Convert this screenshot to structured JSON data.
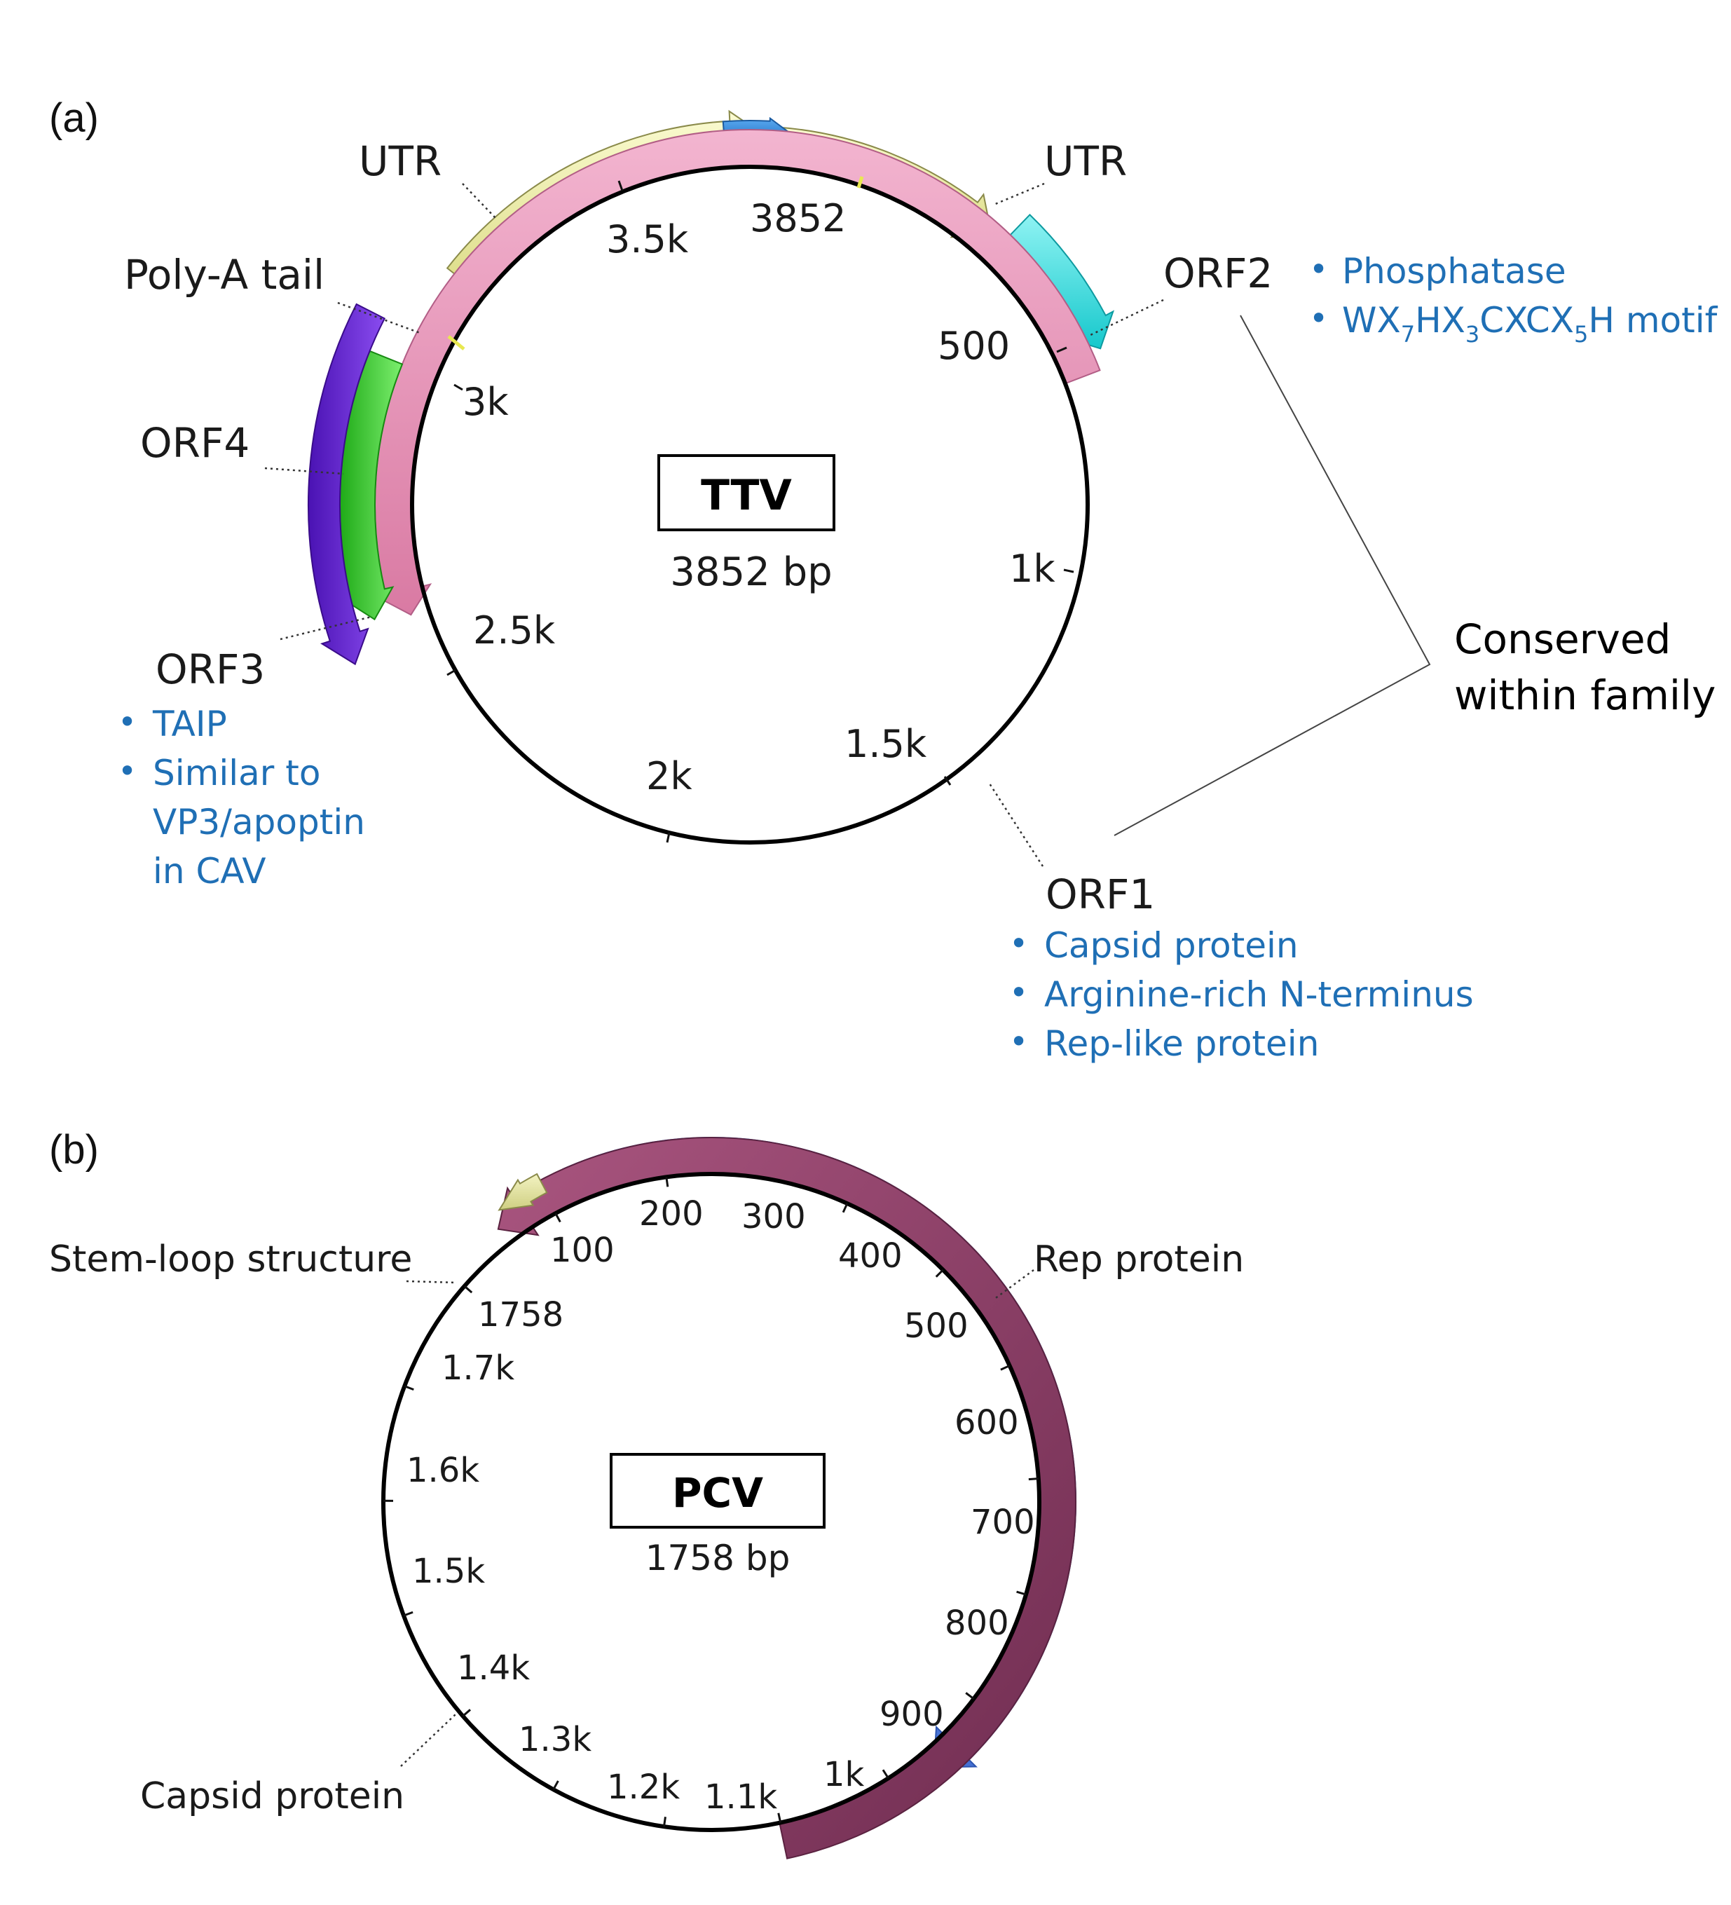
{
  "panel_a": {
    "label": "(a)",
    "genome_name": "TTV",
    "genome_size": "3852 bp",
    "origin_label": "3852",
    "ticks": [
      "500",
      "1k",
      "1.5k",
      "2k",
      "2.5k",
      "3k",
      "3.5k"
    ],
    "features": {
      "utr_left": "UTR",
      "utr_right": "UTR",
      "poly_a": "Poly-A tail",
      "orf1": "ORF1",
      "orf2": "ORF2",
      "orf3": "ORF3",
      "orf4": "ORF4"
    },
    "notes": {
      "orf2": [
        "Phosphatase",
        "WX7HX3CXCX5H motif"
      ],
      "orf2_motif": {
        "p1": "WX",
        "s1": "7",
        "p2": "HX",
        "s2": "3",
        "p3": "CXCX",
        "s3": "5",
        "p4": "H motif"
      },
      "orf3": [
        "TAIP",
        "Similar to",
        "VP3/apoptin",
        "in CAV"
      ],
      "orf1": [
        "Capsid protein",
        "Arginine-rich N-terminus",
        "Rep-like protein"
      ]
    },
    "conserved": [
      "Conserved",
      "within family"
    ],
    "colors": {
      "utr": "#ecec9e",
      "orf1": "#e68fb5",
      "orf2": "#2fdde0",
      "orf3": "#35d02c",
      "orf4": "#6b21e0",
      "origin": "#2a83d6",
      "note": "#1f6fb5"
    }
  },
  "panel_b": {
    "label": "(b)",
    "genome_name": "PCV",
    "genome_size": "1758 bp",
    "origin_label": "1758",
    "ticks": [
      "100",
      "200",
      "300",
      "400",
      "500",
      "600",
      "700",
      "800",
      "900",
      "1k",
      "1.1k",
      "1.2k",
      "1.3k",
      "1.4k",
      "1.5k",
      "1.6k",
      "1.7k"
    ],
    "features": {
      "stem_loop": "Stem-loop structure",
      "rep": "Rep protein",
      "capsid": "Capsid protein"
    },
    "colors": {
      "rep": "#5b86e0",
      "capsid": "#8e3f68",
      "stem_loop": "#e2e2a0"
    }
  },
  "bullet": "•"
}
